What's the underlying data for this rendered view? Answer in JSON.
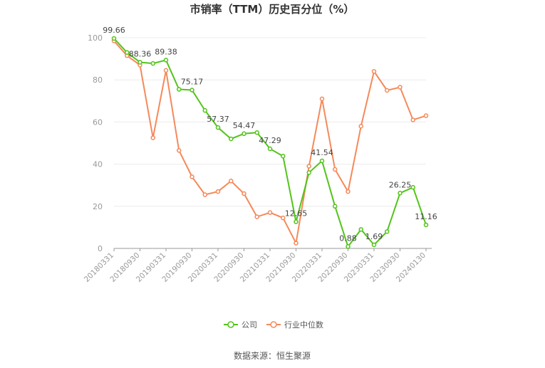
{
  "chart_data": {
    "type": "line",
    "title": "市销率（TTM）历史百分位（%）",
    "source": "数据来源：恒生聚源",
    "ylim": [
      0,
      100
    ],
    "yticks": [
      0,
      20,
      40,
      60,
      80,
      100
    ],
    "grid": true,
    "legend_position": "bottom",
    "x": [
      "20180331",
      "20180630",
      "20180930",
      "20181231",
      "20190331",
      "20190630",
      "20190930",
      "20191231",
      "20200331",
      "20200630",
      "20200930",
      "20201231",
      "20210331",
      "20210630",
      "20210930",
      "20211231",
      "20220331",
      "20220630",
      "20220930",
      "20221231",
      "20230331",
      "20230630",
      "20230930",
      "20231231",
      "20240130"
    ],
    "x_tick_labels": [
      "20180331",
      "20180930",
      "20190331",
      "20190930",
      "20200331",
      "20200930",
      "20210331",
      "20210930",
      "20220331",
      "20220930",
      "20230331",
      "20230930",
      "20240130"
    ],
    "series": [
      {
        "name": "公司",
        "color": "#52c41a",
        "values": [
          99.66,
          93.0,
          88.36,
          87.8,
          89.38,
          75.5,
          75.17,
          65.5,
          57.37,
          52.0,
          54.47,
          55.0,
          47.29,
          43.8,
          12.65,
          36.0,
          41.54,
          20.0,
          0.88,
          9.0,
          1.69,
          8.0,
          26.25,
          29.0,
          11.16
        ],
        "labels": {
          "0": "99.66",
          "2": "88.36",
          "4": "89.38",
          "6": "75.17",
          "8": "57.37",
          "10": "54.47",
          "12": "47.29",
          "14": "12.65",
          "16": "41.54",
          "18": "0.88",
          "20": "1.69",
          "22": "26.25",
          "24": "11.16"
        }
      },
      {
        "name": "行业中位数",
        "color": "#f5895a",
        "values": [
          98.5,
          91.5,
          87.0,
          52.5,
          84.5,
          46.5,
          34.0,
          25.5,
          27.0,
          32.0,
          26.0,
          15.0,
          17.0,
          14.5,
          2.5,
          39.0,
          71.0,
          37.5,
          27.0,
          58.0,
          84.0,
          75.0,
          76.5,
          61.0,
          63.0
        ]
      }
    ]
  }
}
